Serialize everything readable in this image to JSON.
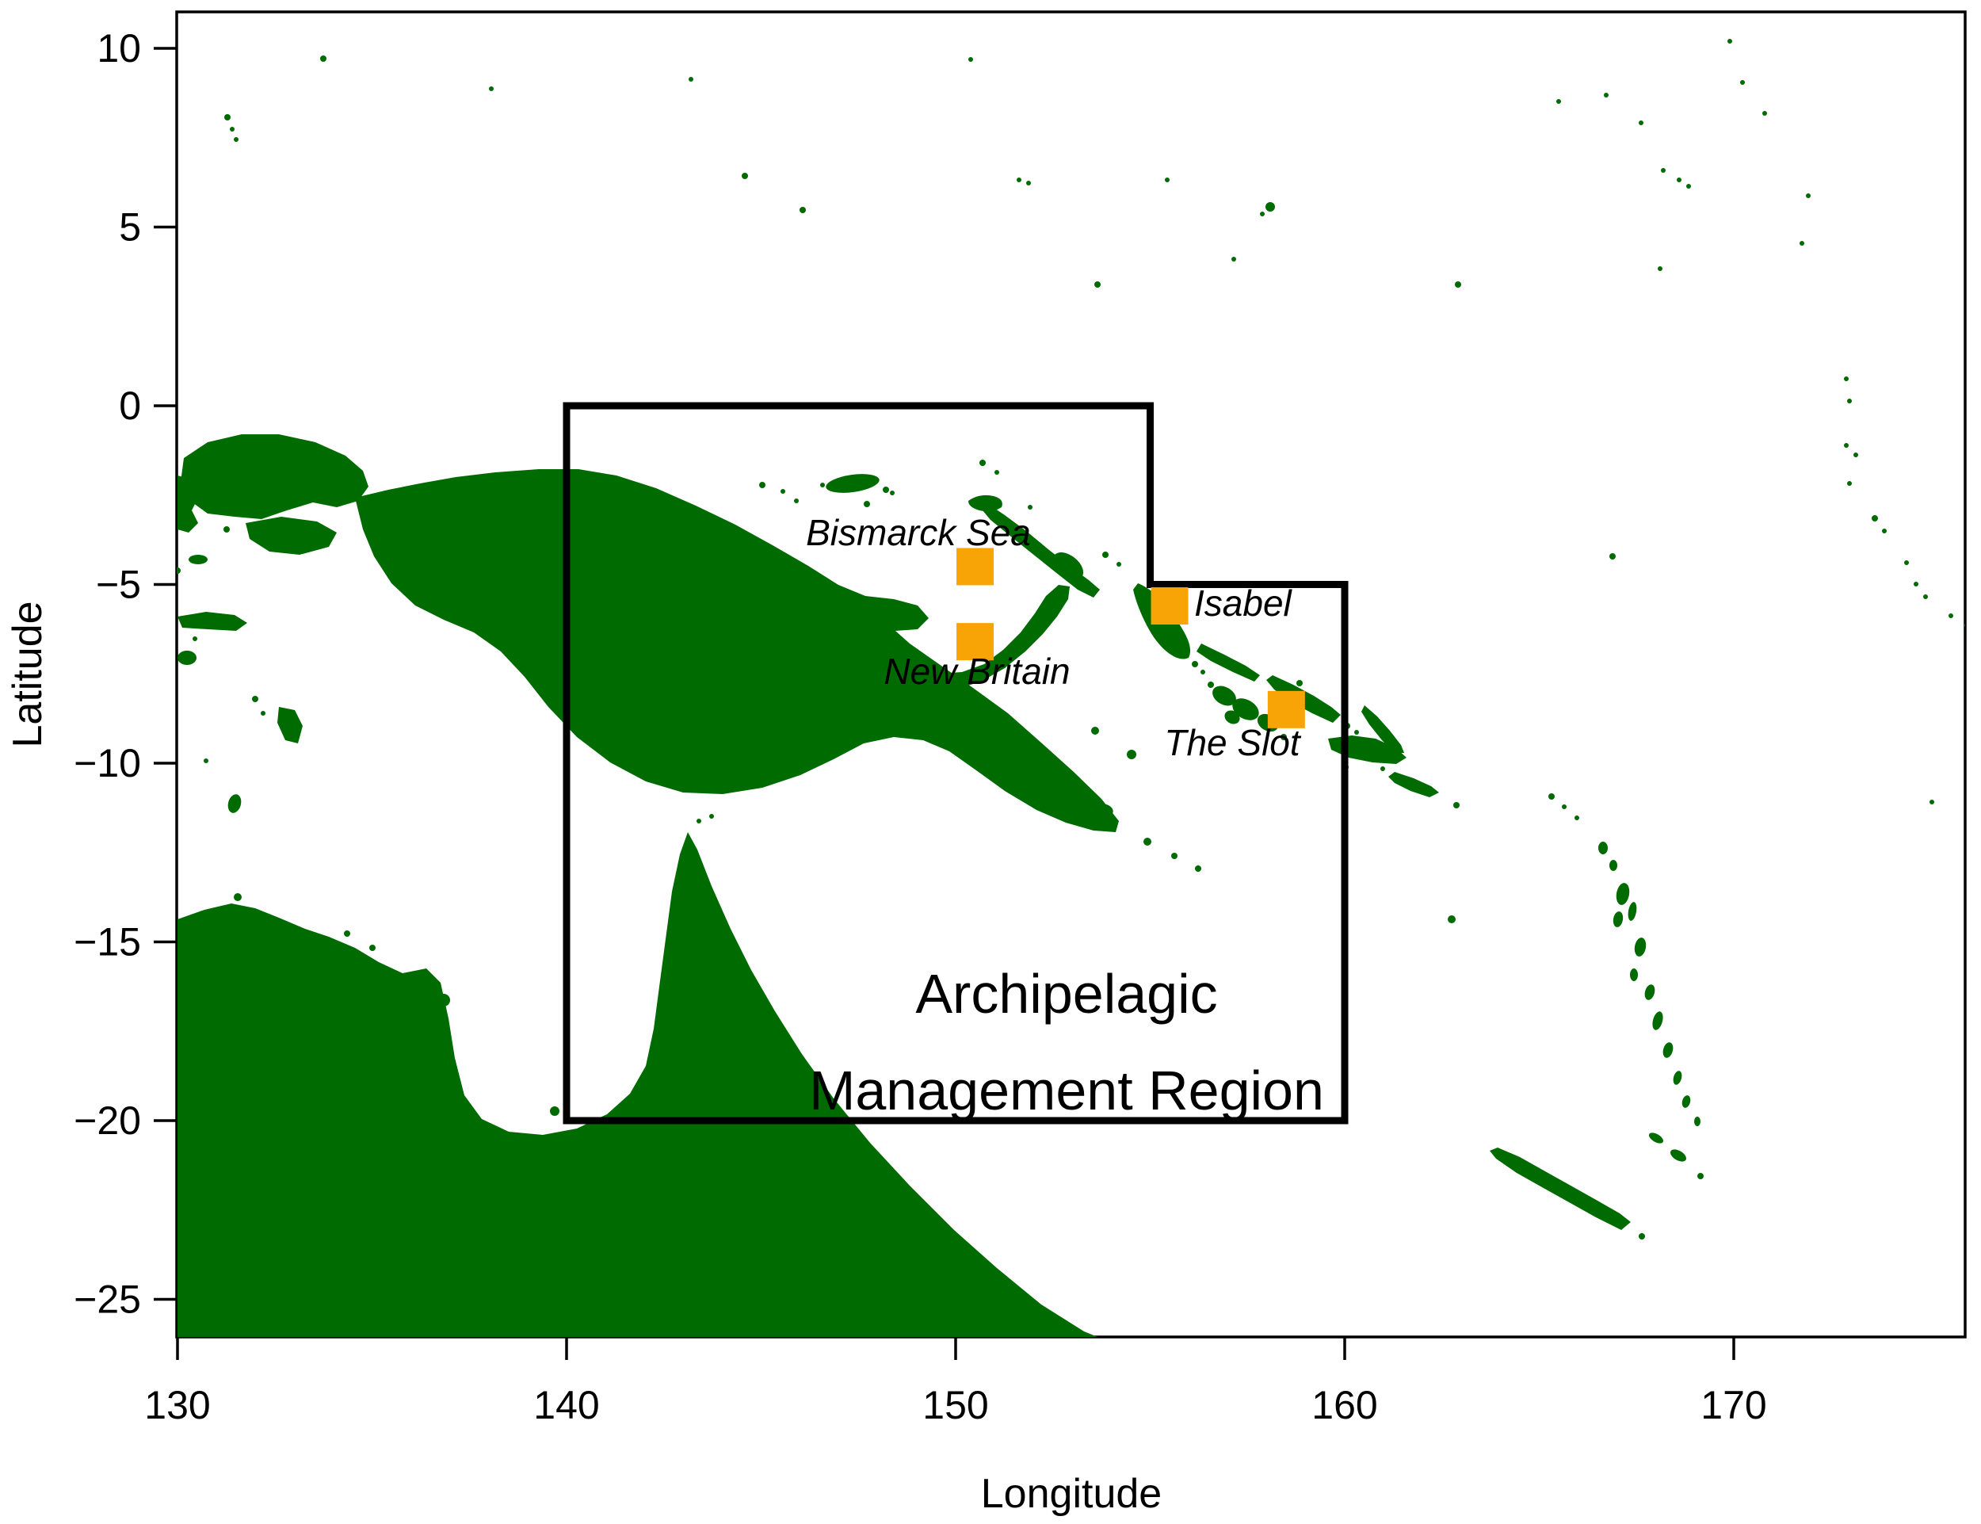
{
  "chart_data": {
    "type": "map",
    "title": "",
    "xlabel": "Longitude",
    "ylabel": "Latitude",
    "x_ticks": [
      130,
      140,
      150,
      160,
      170
    ],
    "y_ticks": [
      10,
      5,
      0,
      -5,
      -10,
      -15,
      -20,
      -25
    ],
    "xlim": [
      129.8,
      175.9
    ],
    "ylim": [
      -26.1,
      11.0
    ],
    "grid": false,
    "region": {
      "title_line1": "Archipelagic",
      "title_line2": "Management Region",
      "polygon_lonlat": [
        [
          140,
          0
        ],
        [
          155,
          0
        ],
        [
          155,
          -5
        ],
        [
          160,
          -5
        ],
        [
          160,
          -20
        ],
        [
          140,
          -20
        ]
      ]
    },
    "markers": [
      {
        "label": "Bismarck Sea",
        "lon": 150.5,
        "lat": -4.5
      },
      {
        "label": "New Britain",
        "lon": 150.5,
        "lat": -6.6
      },
      {
        "label": "Isabel",
        "lon": 155.5,
        "lat": -5.6
      },
      {
        "label": "The Slot",
        "lon": 158.5,
        "lat": -8.5
      }
    ],
    "colors": {
      "land": "#006B00",
      "marker": "#F8A407",
      "region_outline": "#000000",
      "background": "#FFFFFF",
      "text": "#000000"
    }
  }
}
